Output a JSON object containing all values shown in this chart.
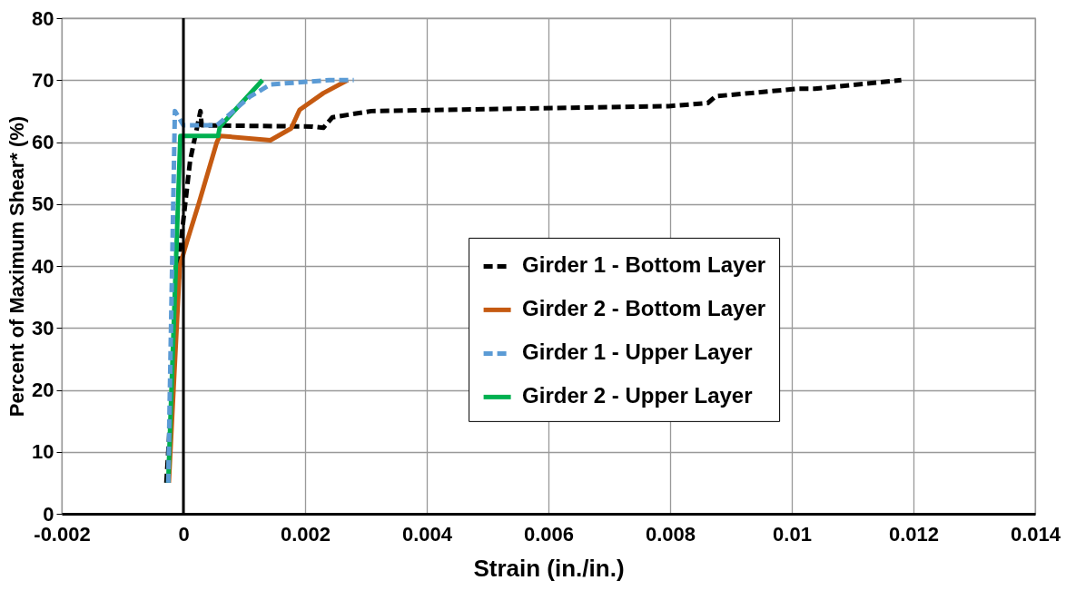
{
  "chart_data": {
    "type": "line",
    "xlabel": "Strain (in./in.)",
    "ylabel": "Percent of Maximum Shear* (%)",
    "xlim": [
      -0.002,
      0.014
    ],
    "xticks": [
      -0.002,
      0,
      0.002,
      0.004,
      0.006,
      0.008,
      0.01,
      0.012,
      0.014
    ],
    "ylim": [
      0,
      80
    ],
    "yticks": [
      0,
      10,
      20,
      30,
      40,
      50,
      60,
      70,
      80
    ],
    "grid": true,
    "legend": "right",
    "marker": "none",
    "ref_lines": [
      {
        "axis": "x",
        "value": 0,
        "color": "#000000"
      }
    ],
    "series": [
      {
        "name": "Girder 1 - Bottom Layer",
        "color": "#000000",
        "line_style": "dashed",
        "x": [
          -0.00028,
          -4e-05,
          0.00011,
          0.00028,
          0.0003,
          0.00211,
          0.0023,
          0.00245,
          0.00309,
          0.00798,
          0.00862,
          0.00875,
          0.0101,
          0.01038,
          0.0118
        ],
        "values": [
          5,
          44,
          57,
          65,
          62.7,
          62.5,
          62.3,
          64,
          65,
          65.8,
          66.3,
          67.4,
          68.6,
          68.6,
          70
        ]
      },
      {
        "name": "Girder 2 - Bottom Layer",
        "color": "#c55a11",
        "line_style": "solid",
        "x": [
          -0.00024,
          -6e-05,
          6e-05,
          0.00025,
          0.00055,
          0.0006,
          0.00143,
          0.00177,
          0.00191,
          0.0023,
          0.0027
        ],
        "values": [
          5,
          40,
          44,
          50,
          60,
          61,
          60.3,
          62.2,
          65.2,
          67.9,
          70
        ]
      },
      {
        "name": "Girder 1 - Upper Layer",
        "color": "#5b9bd5",
        "line_style": "dashed",
        "x": [
          -0.00025,
          -0.00014,
          0,
          0.00055,
          0.00109,
          0.00143,
          0.0024,
          0.0028
        ],
        "values": [
          5,
          65,
          62.7,
          62.7,
          67.3,
          69.3,
          70,
          70
        ]
      },
      {
        "name": "Girder 2 - Upper Layer",
        "color": "#00b050",
        "line_style": "solid",
        "x": [
          -0.00025,
          -5e-05,
          0.00057,
          0.0006,
          0.0013
        ],
        "values": [
          5,
          61,
          61,
          62.5,
          70
        ]
      }
    ]
  }
}
